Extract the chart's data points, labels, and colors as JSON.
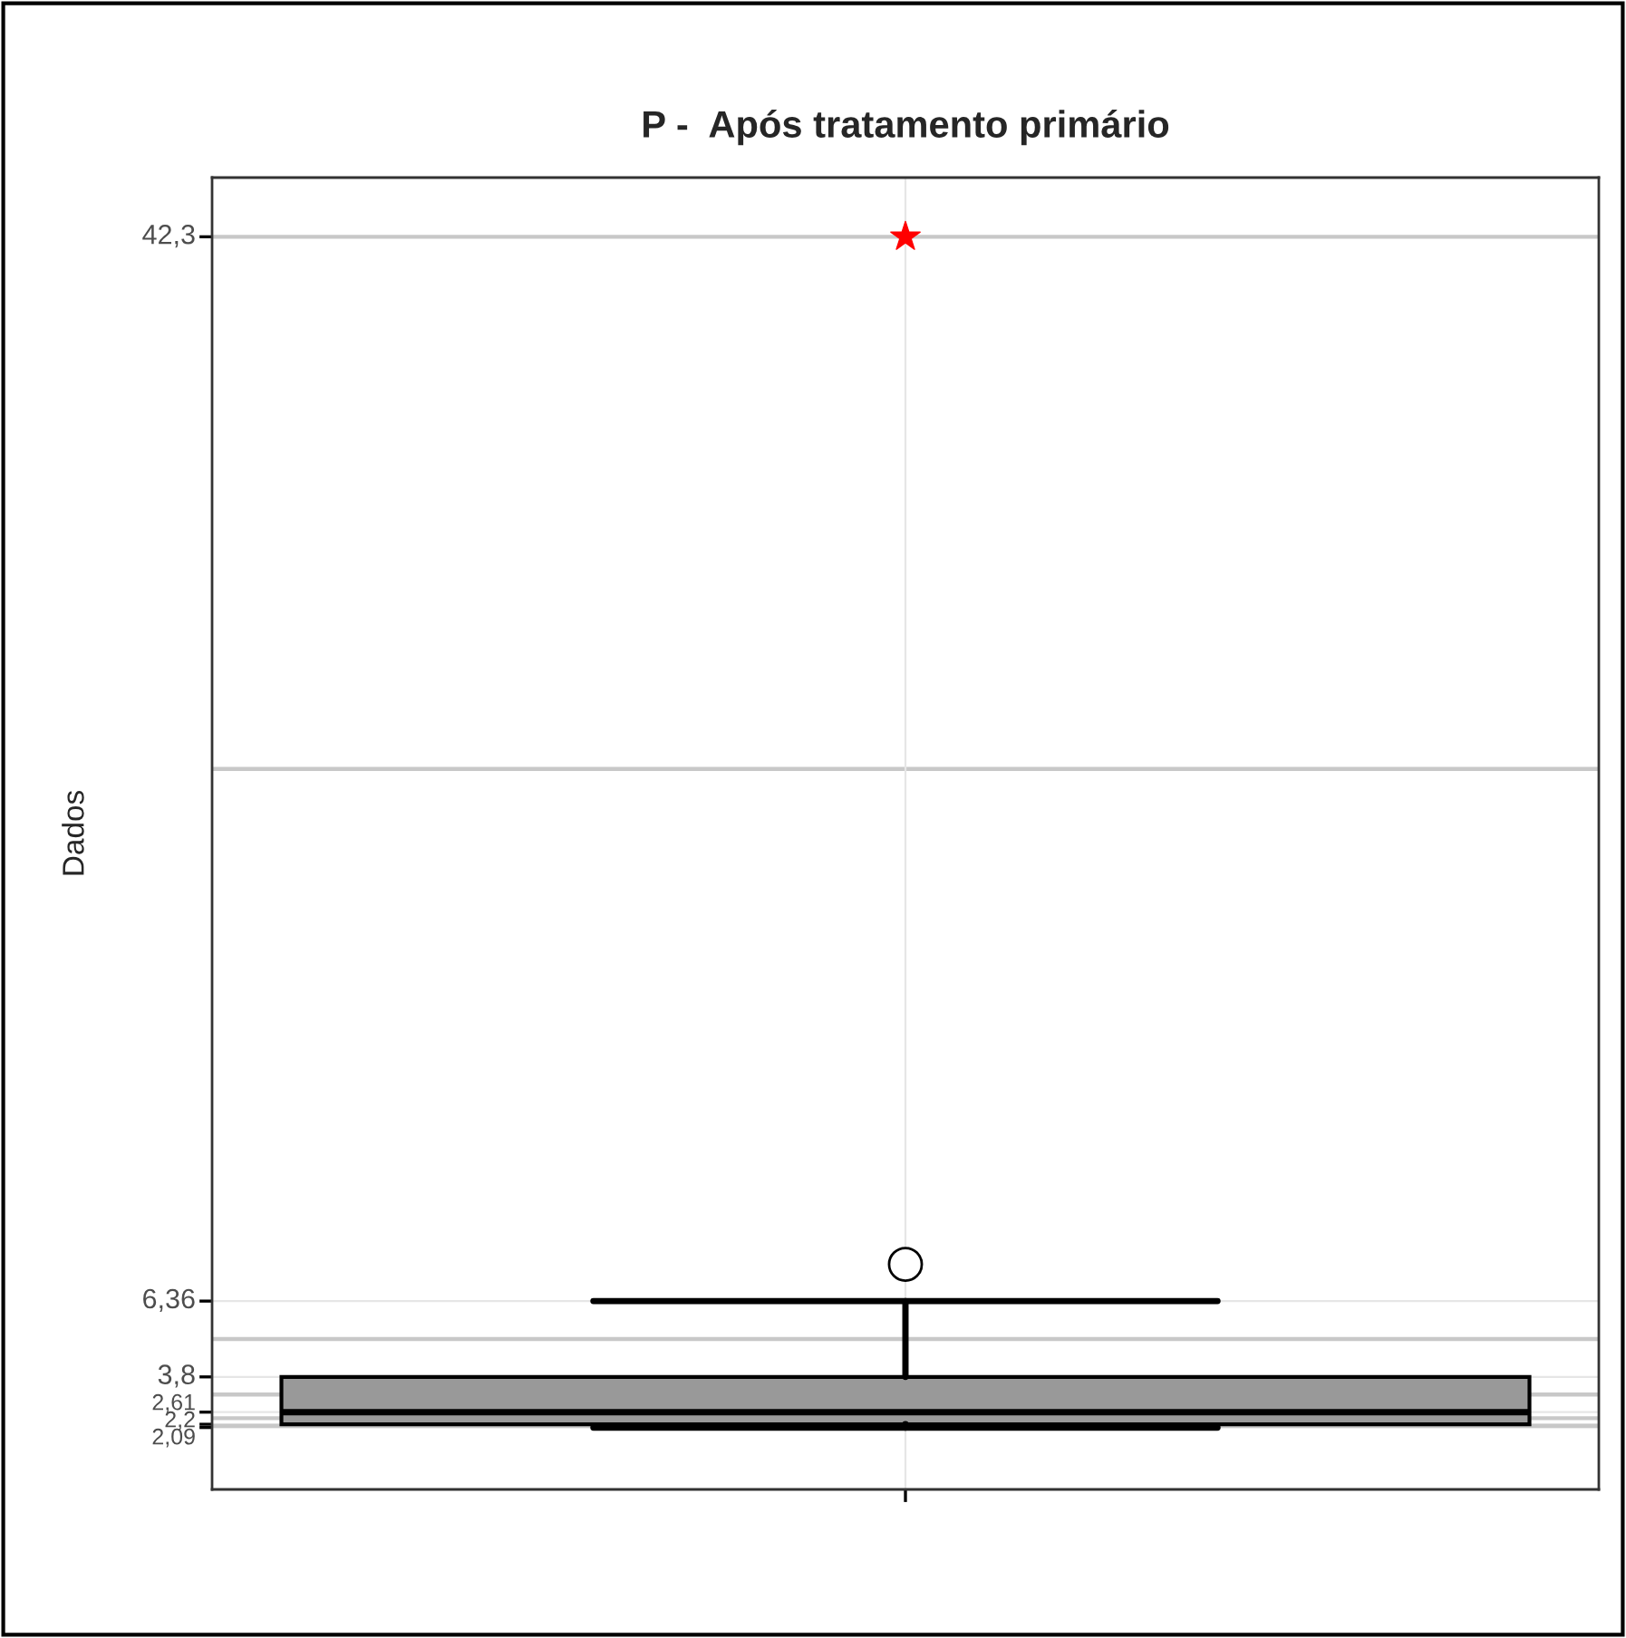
{
  "chart_data": {
    "type": "box",
    "title": "P -  Após tratamento primário",
    "ylabel": "Dados",
    "categories": [
      null
    ],
    "boxes": [
      {
        "low": 2.09,
        "q1": 2.2,
        "median": 2.61,
        "q3": 3.8,
        "high": 6.36,
        "outliers": [
          7.6
        ]
      }
    ],
    "series": [
      {
        "type": "scatter",
        "color": "#ff0000",
        "marker": "star",
        "values": [
          42.3
        ]
      }
    ],
    "ylim": [
      0,
      44.3
    ],
    "yticks": [
      {
        "value": 2.09,
        "label": "2,09"
      },
      {
        "value": 2.2,
        "label": "2,2"
      },
      {
        "value": 2.61,
        "label": "2,61"
      },
      {
        "value": 3.8,
        "label": "3,8"
      },
      {
        "value": 6.36,
        "label": "6,36"
      },
      {
        "value": 42.3,
        "label": "42,3"
      }
    ],
    "grid": true
  }
}
